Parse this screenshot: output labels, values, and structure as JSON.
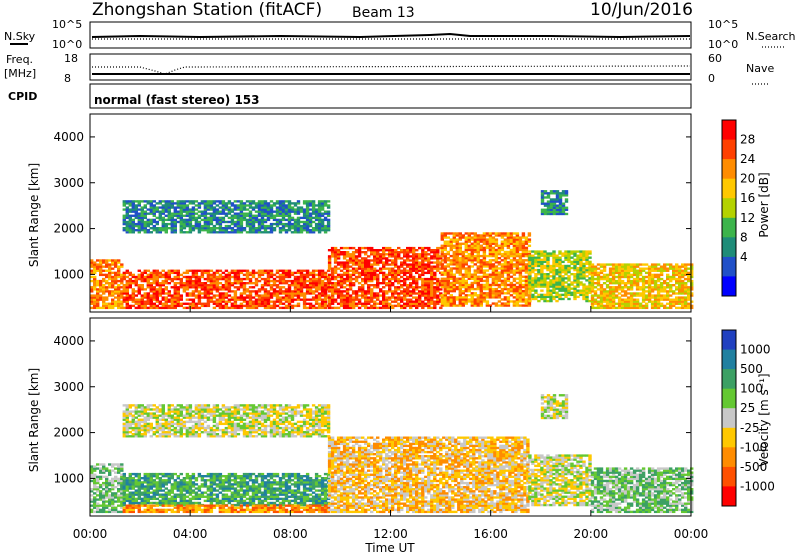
{
  "header": {
    "station": "Zhongshan Station (fitACF)",
    "beam": "Beam 13",
    "date": "10/Jun/2016"
  },
  "params": {
    "nsky_label": "N.Sky",
    "nsky_ticks": [
      "10^5",
      "10^0"
    ],
    "nsearch_label": "N.Search",
    "nsearch_ticks": [
      "10^5",
      "10^0"
    ],
    "freq_label": "Freq.",
    "freq_unit": "[MHz]",
    "freq_ticks": [
      "18",
      "8"
    ],
    "nave_label": "Nave",
    "nave_ticks": [
      "60",
      "0"
    ],
    "cpid_label": "CPID",
    "cpid_value": "normal (fast stereo) 153"
  },
  "axes": {
    "ylabel": "Slant Range [km]",
    "xlabel": "Time UT",
    "y_ticks": [
      "4000",
      "3000",
      "2000",
      "1000"
    ],
    "x_ticks": [
      "00:00",
      "04:00",
      "08:00",
      "12:00",
      "16:00",
      "20:00",
      "00:00"
    ]
  },
  "power_scale": {
    "label": "Power [dB]",
    "ticks": [
      "28",
      "24",
      "20",
      "16",
      "12",
      "8",
      "4"
    ],
    "colors": [
      "#ff0000",
      "#ff4000",
      "#ff8c00",
      "#ffc800",
      "#b4d200",
      "#3cb44b",
      "#1e8c78",
      "#2050c8",
      "#0000ff"
    ]
  },
  "velocity_scale": {
    "label": "Velocity [m s⁻¹]",
    "ticks": [
      "1000",
      "500",
      "100",
      "25",
      "-25",
      "-100",
      "-500",
      "-1000"
    ],
    "colors": [
      "#2040c0",
      "#2080a0",
      "#3ca064",
      "#64c832",
      "#c8c8c8",
      "#ffc800",
      "#ff8c00",
      "#ff5000",
      "#ff0000"
    ]
  },
  "chart_data": [
    {
      "type": "heatmap",
      "title": "Power",
      "x_range": [
        "00:00",
        "24:00"
      ],
      "y_range": [
        180,
        4500
      ],
      "clim": [
        0,
        30
      ],
      "regions": [
        {
          "t0": 0.0,
          "t1": 1.3,
          "r0": 250,
          "r1": 1300,
          "value": 24
        },
        {
          "t0": 1.3,
          "t1": 9.5,
          "r0": 250,
          "r1": 1100,
          "value": 26
        },
        {
          "t0": 9.5,
          "t1": 14.0,
          "r0": 250,
          "r1": 1600,
          "value": 28
        },
        {
          "t0": 14.0,
          "t1": 17.5,
          "r0": 300,
          "r1": 1900,
          "value": 24
        },
        {
          "t0": 17.5,
          "t1": 20.0,
          "r0": 400,
          "r1": 1500,
          "value": 16
        },
        {
          "t0": 20.0,
          "t1": 24.0,
          "r0": 250,
          "r1": 1200,
          "value": 20
        },
        {
          "t0": 1.3,
          "t1": 9.5,
          "r0": 1900,
          "r1": 2600,
          "value": 8
        },
        {
          "t0": 18.0,
          "t1": 19.0,
          "r0": 2300,
          "r1": 2800,
          "value": 8
        }
      ]
    },
    {
      "type": "heatmap",
      "title": "Velocity",
      "x_range": [
        "00:00",
        "24:00"
      ],
      "y_range": [
        180,
        4500
      ],
      "clim": [
        -1000,
        1000
      ],
      "regions": [
        {
          "t0": 0.0,
          "t1": 1.3,
          "r0": 250,
          "r1": 1300,
          "value": 300
        },
        {
          "t0": 1.3,
          "t1": 9.5,
          "r0": 400,
          "r1": 1100,
          "value": 500
        },
        {
          "t0": 1.3,
          "t1": 9.5,
          "r0": 250,
          "r1": 400,
          "value": -500
        },
        {
          "t0": 9.5,
          "t1": 17.5,
          "r0": 250,
          "r1": 1900,
          "value": -200
        },
        {
          "t0": 17.5,
          "t1": 20.0,
          "r0": 400,
          "r1": 1500,
          "value": -60
        },
        {
          "t0": 20.0,
          "t1": 24.0,
          "r0": 250,
          "r1": 1200,
          "value": 200
        },
        {
          "t0": 1.3,
          "t1": 9.5,
          "r0": 1900,
          "r1": 2600,
          "value": 0
        },
        {
          "t0": 18.0,
          "t1": 19.0,
          "r0": 2300,
          "r1": 2800,
          "value": 0
        }
      ]
    }
  ]
}
